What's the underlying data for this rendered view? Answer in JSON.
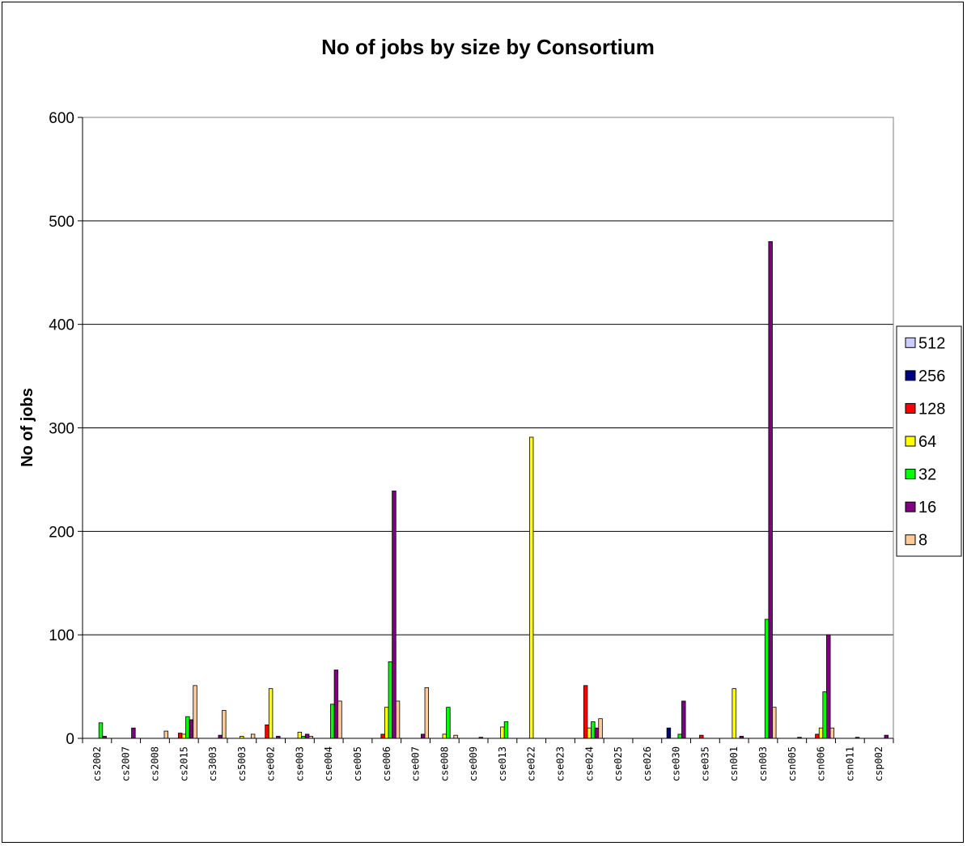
{
  "chart_data": {
    "type": "bar",
    "title": "No of jobs by size by Consortium",
    "xlabel": "",
    "ylabel": "No of jobs",
    "ylim": [
      0,
      600
    ],
    "yticks": [
      "0",
      "100",
      "200",
      "300",
      "400",
      "500",
      "600"
    ],
    "grid": true,
    "legend_position": "right",
    "categories": [
      "cs2002",
      "cs2007",
      "cs2008",
      "cs2015",
      "cs3003",
      "cs5003",
      "cse002",
      "cse003",
      "cse004",
      "cse005",
      "cse006",
      "cse007",
      "cse008",
      "cse009",
      "cse013",
      "cse022",
      "cse023",
      "cse024",
      "cse025",
      "cse026",
      "cse030",
      "cse035",
      "csn001",
      "csn003",
      "csn005",
      "csn006",
      "csn011",
      "csp002"
    ],
    "series": [
      {
        "name": "512",
        "color": "#ccccff",
        "values": [
          0,
          0,
          0,
          0,
          0,
          0,
          0,
          0,
          0,
          0,
          0,
          0,
          0,
          0,
          0,
          0,
          0,
          0,
          0,
          0,
          0,
          0,
          0,
          0,
          0,
          0,
          0,
          0
        ]
      },
      {
        "name": "256",
        "color": "#000080",
        "values": [
          0,
          0,
          0,
          0,
          0,
          0,
          0,
          0,
          0,
          0,
          0,
          0,
          0,
          0,
          0,
          0,
          0,
          0,
          0,
          0,
          10,
          0,
          0,
          0,
          0,
          0,
          0,
          0
        ]
      },
      {
        "name": "128",
        "color": "#ff0000",
        "values": [
          0,
          0,
          0,
          5,
          0,
          0,
          13,
          0,
          0,
          0,
          4,
          0,
          0,
          0,
          0,
          0,
          0,
          51,
          0,
          0,
          0,
          3,
          0,
          0,
          0,
          4,
          0,
          0
        ]
      },
      {
        "name": "64",
        "color": "#ffff00",
        "values": [
          0,
          0,
          0,
          4,
          0,
          2,
          48,
          6,
          0,
          0,
          30,
          0,
          4,
          0,
          11,
          291,
          0,
          10,
          0,
          0,
          0,
          0,
          48,
          0,
          0,
          10,
          0,
          0
        ]
      },
      {
        "name": "32",
        "color": "#00ff00",
        "values": [
          15,
          0,
          0,
          21,
          0,
          0,
          0,
          2,
          33,
          0,
          74,
          0,
          30,
          0,
          16,
          0,
          0,
          16,
          0,
          0,
          4,
          0,
          0,
          115,
          0,
          45,
          0,
          0
        ]
      },
      {
        "name": "16",
        "color": "#800080",
        "values": [
          2,
          10,
          0,
          18,
          3,
          0,
          2,
          4,
          66,
          0,
          239,
          4,
          0,
          1,
          0,
          0,
          0,
          10,
          0,
          0,
          36,
          0,
          2,
          480,
          1,
          100,
          1,
          3
        ]
      },
      {
        "name": "8",
        "color": "#ffcc99",
        "values": [
          0,
          0,
          7,
          51,
          27,
          4,
          0,
          2,
          36,
          0,
          36,
          49,
          3,
          0,
          0,
          0,
          0,
          19,
          0,
          0,
          0,
          0,
          0,
          30,
          0,
          10,
          0,
          0
        ]
      }
    ]
  }
}
